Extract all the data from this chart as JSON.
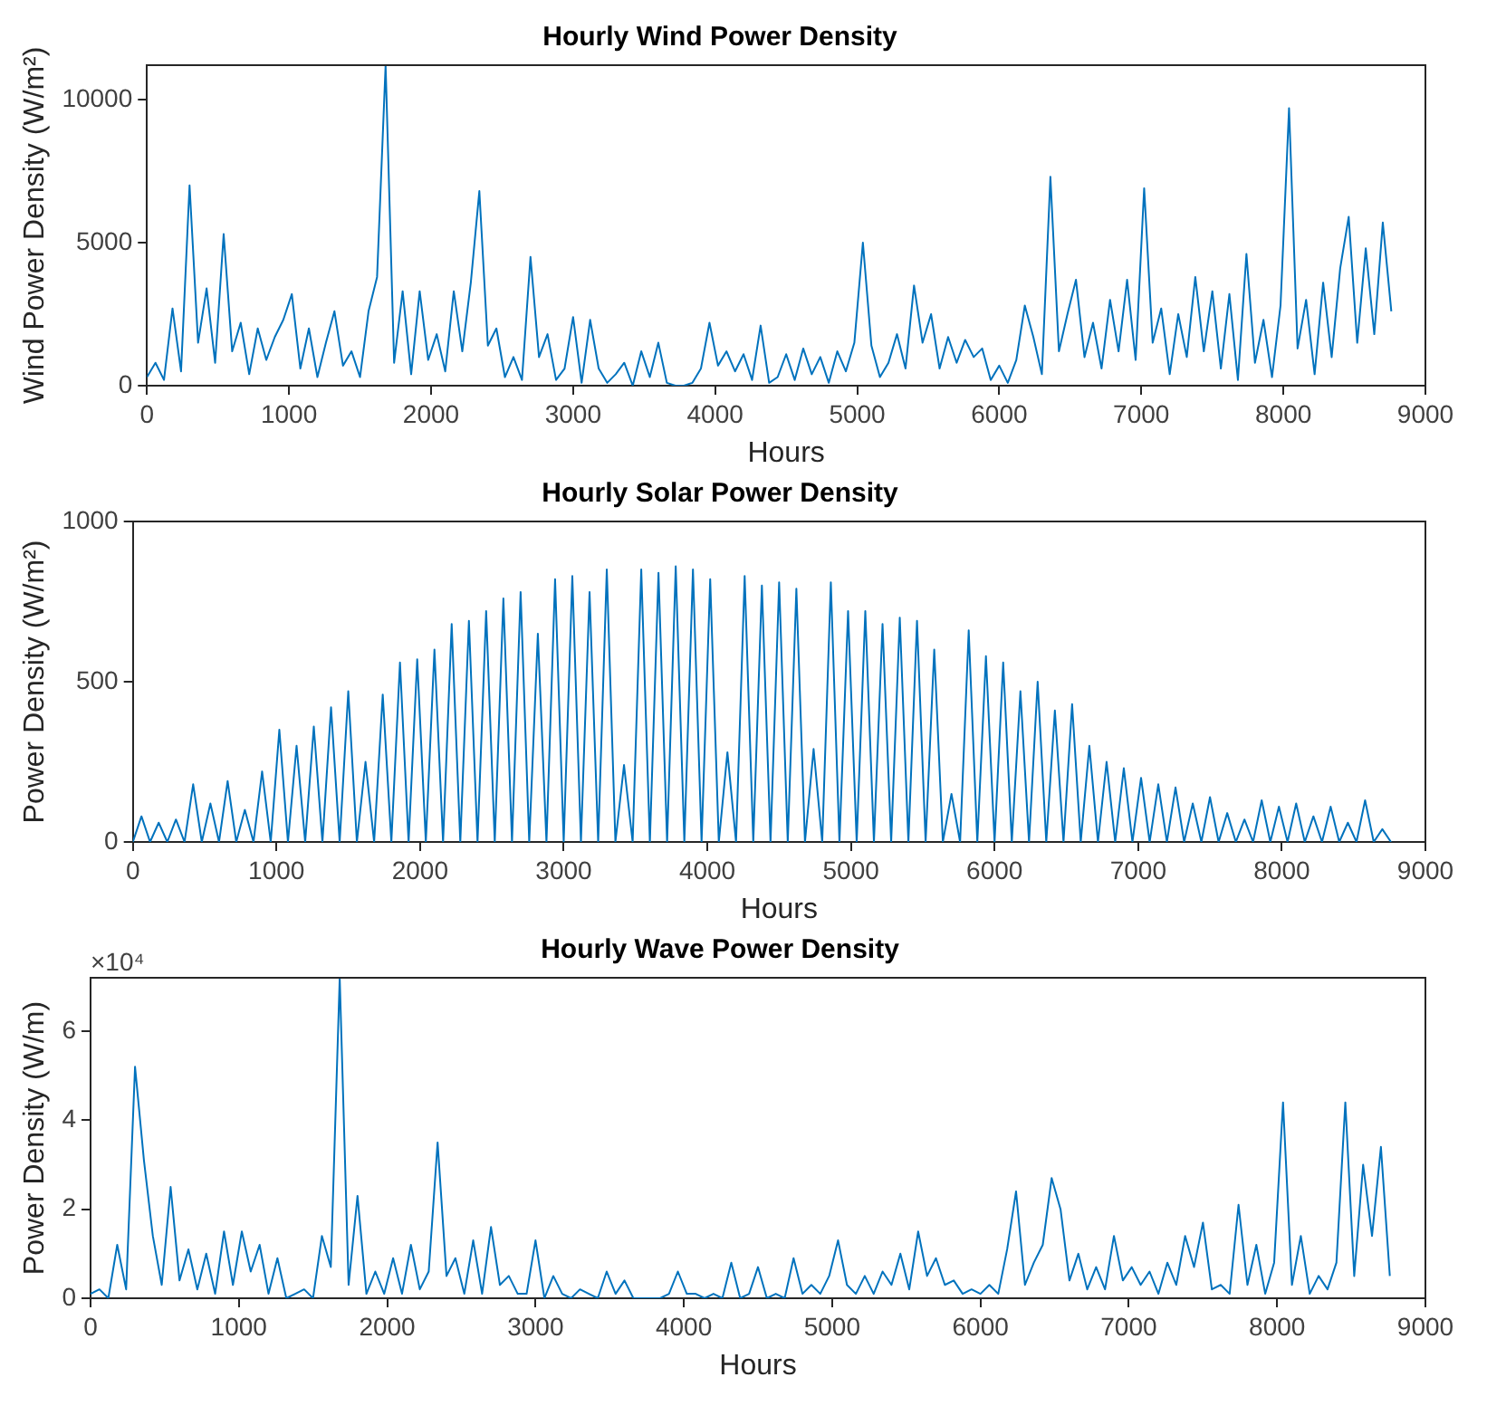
{
  "chart_data": [
    {
      "type": "line",
      "title": "Hourly Wind Power Density",
      "xlabel": "Hours",
      "ylabel": "Wind Power Density (W/m²)",
      "color": "#0072bd",
      "marker": "none",
      "xlim": [
        0,
        9000
      ],
      "xticks": [
        0,
        1000,
        2000,
        3000,
        4000,
        5000,
        6000,
        7000,
        8000,
        9000
      ],
      "ylim": [
        0,
        11200
      ],
      "yticks": [
        0,
        5000,
        10000
      ],
      "x": [
        0,
        60,
        120,
        180,
        240,
        300,
        360,
        420,
        480,
        540,
        600,
        660,
        720,
        780,
        840,
        900,
        960,
        1020,
        1080,
        1140,
        1200,
        1260,
        1320,
        1380,
        1440,
        1500,
        1560,
        1620,
        1680,
        1740,
        1800,
        1860,
        1920,
        1980,
        2040,
        2100,
        2160,
        2220,
        2280,
        2340,
        2400,
        2460,
        2520,
        2580,
        2640,
        2700,
        2760,
        2820,
        2880,
        2940,
        3000,
        3060,
        3120,
        3180,
        3240,
        3300,
        3360,
        3420,
        3480,
        3540,
        3600,
        3660,
        3720,
        3780,
        3840,
        3900,
        3960,
        4020,
        4080,
        4140,
        4200,
        4260,
        4320,
        4380,
        4440,
        4500,
        4560,
        4620,
        4680,
        4740,
        4800,
        4860,
        4920,
        4980,
        5040,
        5100,
        5160,
        5220,
        5280,
        5340,
        5400,
        5460,
        5520,
        5580,
        5640,
        5700,
        5760,
        5820,
        5880,
        5940,
        6000,
        6060,
        6120,
        6180,
        6240,
        6300,
        6360,
        6420,
        6480,
        6540,
        6600,
        6660,
        6720,
        6780,
        6840,
        6900,
        6960,
        7020,
        7080,
        7140,
        7200,
        7260,
        7320,
        7380,
        7440,
        7500,
        7560,
        7620,
        7680,
        7740,
        7800,
        7860,
        7920,
        7980,
        8040,
        8100,
        8160,
        8220,
        8280,
        8340,
        8400,
        8460,
        8520,
        8580,
        8640,
        8700,
        8760
      ],
      "values": [
        300,
        800,
        200,
        2700,
        500,
        7000,
        1500,
        3400,
        800,
        5300,
        1200,
        2200,
        400,
        2000,
        900,
        1700,
        2300,
        3200,
        600,
        2000,
        300,
        1500,
        2600,
        700,
        1200,
        300,
        2600,
        3800,
        11200,
        800,
        3300,
        400,
        3300,
        900,
        1800,
        500,
        3300,
        1200,
        3600,
        6800,
        1400,
        2000,
        300,
        1000,
        200,
        4500,
        1000,
        1800,
        200,
        600,
        2400,
        100,
        2300,
        600,
        100,
        400,
        800,
        0,
        1200,
        300,
        1500,
        100,
        0,
        0,
        100,
        600,
        2200,
        700,
        1200,
        500,
        1100,
        200,
        2100,
        100,
        300,
        1100,
        200,
        1300,
        400,
        1000,
        100,
        1200,
        500,
        1500,
        5000,
        1400,
        300,
        800,
        1800,
        600,
        3500,
        1500,
        2500,
        600,
        1700,
        800,
        1600,
        1000,
        1300,
        200,
        700,
        100,
        900,
        2800,
        1700,
        400,
        7300,
        1200,
        2500,
        3700,
        1000,
        2200,
        600,
        3000,
        1200,
        3700,
        900,
        6900,
        1500,
        2700,
        400,
        2500,
        1000,
        3800,
        1200,
        3300,
        600,
        3200,
        200,
        4600,
        800,
        2300,
        300,
        2800,
        9700,
        1300,
        3000,
        400,
        3600,
        1000,
        4100,
        5900,
        1500,
        4800,
        1800,
        5700,
        2600
      ]
    },
    {
      "type": "line",
      "title": "Hourly Solar Power Density",
      "xlabel": "Hours",
      "ylabel": "Power Density (W/m²)",
      "color": "#0072bd",
      "marker": "none",
      "xlim": [
        0,
        9000
      ],
      "xticks": [
        0,
        1000,
        2000,
        3000,
        4000,
        5000,
        6000,
        7000,
        8000,
        9000
      ],
      "ylim": [
        0,
        1000
      ],
      "yticks": [
        0,
        500,
        1000
      ],
      "x": [
        0,
        60,
        120,
        180,
        240,
        300,
        360,
        420,
        480,
        540,
        600,
        660,
        720,
        780,
        840,
        900,
        960,
        1020,
        1080,
        1140,
        1200,
        1260,
        1320,
        1380,
        1440,
        1500,
        1560,
        1620,
        1680,
        1740,
        1800,
        1860,
        1920,
        1980,
        2040,
        2100,
        2160,
        2220,
        2280,
        2340,
        2400,
        2460,
        2520,
        2580,
        2640,
        2700,
        2760,
        2820,
        2880,
        2940,
        3000,
        3060,
        3120,
        3180,
        3240,
        3300,
        3360,
        3420,
        3480,
        3540,
        3600,
        3660,
        3720,
        3780,
        3840,
        3900,
        3960,
        4020,
        4080,
        4140,
        4200,
        4260,
        4320,
        4380,
        4440,
        4500,
        4560,
        4620,
        4680,
        4740,
        4800,
        4860,
        4920,
        4980,
        5040,
        5100,
        5160,
        5220,
        5280,
        5340,
        5400,
        5460,
        5520,
        5580,
        5640,
        5700,
        5760,
        5820,
        5880,
        5940,
        6000,
        6060,
        6120,
        6180,
        6240,
        6300,
        6360,
        6420,
        6480,
        6540,
        6600,
        6660,
        6720,
        6780,
        6840,
        6900,
        6960,
        7020,
        7080,
        7140,
        7200,
        7260,
        7320,
        7380,
        7440,
        7500,
        7560,
        7620,
        7680,
        7740,
        7800,
        7860,
        7920,
        7980,
        8040,
        8100,
        8160,
        8220,
        8280,
        8340,
        8400,
        8460,
        8520,
        8580,
        8640,
        8700,
        8760
      ],
      "values": [
        0,
        80,
        0,
        60,
        0,
        70,
        0,
        180,
        0,
        120,
        0,
        190,
        0,
        100,
        0,
        220,
        0,
        350,
        0,
        300,
        0,
        360,
        0,
        420,
        0,
        470,
        0,
        250,
        0,
        460,
        0,
        560,
        0,
        570,
        0,
        600,
        0,
        680,
        0,
        690,
        0,
        720,
        0,
        760,
        0,
        780,
        0,
        650,
        0,
        820,
        0,
        830,
        0,
        780,
        0,
        850,
        0,
        240,
        0,
        850,
        0,
        840,
        0,
        860,
        0,
        850,
        0,
        820,
        0,
        280,
        0,
        830,
        0,
        800,
        0,
        810,
        0,
        790,
        0,
        290,
        0,
        810,
        0,
        720,
        0,
        720,
        0,
        680,
        0,
        700,
        0,
        690,
        0,
        600,
        0,
        150,
        0,
        660,
        0,
        580,
        0,
        560,
        0,
        470,
        0,
        500,
        0,
        410,
        0,
        430,
        0,
        300,
        0,
        250,
        0,
        230,
        0,
        200,
        0,
        180,
        0,
        170,
        0,
        120,
        0,
        140,
        0,
        90,
        0,
        70,
        0,
        130,
        0,
        110,
        0,
        120,
        0,
        80,
        0,
        110,
        0,
        60,
        0,
        130,
        0,
        40,
        0
      ]
    },
    {
      "type": "line",
      "title": "Hourly Wave Power Density",
      "xlabel": "Hours",
      "ylabel": "Power Density (W/m)",
      "color": "#0072bd",
      "marker": "none",
      "annotations": [
        "×10⁴"
      ],
      "xlim": [
        0,
        9000
      ],
      "xticks": [
        0,
        1000,
        2000,
        3000,
        4000,
        5000,
        6000,
        7000,
        8000,
        9000
      ],
      "ylim": [
        0,
        7.2
      ],
      "yticks": [
        0,
        2,
        4,
        6
      ],
      "x": [
        0,
        60,
        120,
        180,
        240,
        300,
        360,
        420,
        480,
        540,
        600,
        660,
        720,
        780,
        840,
        900,
        960,
        1020,
        1080,
        1140,
        1200,
        1260,
        1320,
        1380,
        1440,
        1500,
        1560,
        1620,
        1680,
        1740,
        1800,
        1860,
        1920,
        1980,
        2040,
        2100,
        2160,
        2220,
        2280,
        2340,
        2400,
        2460,
        2520,
        2580,
        2640,
        2700,
        2760,
        2820,
        2880,
        2940,
        3000,
        3060,
        3120,
        3180,
        3240,
        3300,
        3360,
        3420,
        3480,
        3540,
        3600,
        3660,
        3720,
        3780,
        3840,
        3900,
        3960,
        4020,
        4080,
        4140,
        4200,
        4260,
        4320,
        4380,
        4440,
        4500,
        4560,
        4620,
        4680,
        4740,
        4800,
        4860,
        4920,
        4980,
        5040,
        5100,
        5160,
        5220,
        5280,
        5340,
        5400,
        5460,
        5520,
        5580,
        5640,
        5700,
        5760,
        5820,
        5880,
        5940,
        6000,
        6060,
        6120,
        6180,
        6240,
        6300,
        6360,
        6420,
        6480,
        6540,
        6600,
        6660,
        6720,
        6780,
        6840,
        6900,
        6960,
        7020,
        7080,
        7140,
        7200,
        7260,
        7320,
        7380,
        7440,
        7500,
        7560,
        7620,
        7680,
        7740,
        7800,
        7860,
        7920,
        7980,
        8040,
        8100,
        8160,
        8220,
        8280,
        8340,
        8400,
        8460,
        8520,
        8580,
        8640,
        8700,
        8760
      ],
      "values": [
        0.1,
        0.2,
        0,
        1.2,
        0.2,
        5.2,
        3.1,
        1.4,
        0.3,
        2.5,
        0.4,
        1.1,
        0.2,
        1.0,
        0.1,
        1.5,
        0.3,
        1.5,
        0.6,
        1.2,
        0.1,
        0.9,
        0,
        0.1,
        0.2,
        0,
        1.4,
        0.7,
        7.2,
        0.3,
        2.3,
        0.1,
        0.6,
        0.1,
        0.9,
        0.1,
        1.2,
        0.2,
        0.6,
        3.5,
        0.5,
        0.9,
        0.1,
        1.3,
        0.1,
        1.6,
        0.3,
        0.5,
        0.1,
        0.1,
        1.3,
        0,
        0.5,
        0.1,
        0,
        0.2,
        0.1,
        0,
        0.6,
        0.1,
        0.4,
        0,
        0,
        0,
        0,
        0.1,
        0.6,
        0.1,
        0.1,
        0,
        0.1,
        0,
        0.8,
        0,
        0.1,
        0.7,
        0,
        0.1,
        0,
        0.9,
        0.1,
        0.3,
        0.1,
        0.5,
        1.3,
        0.3,
        0.1,
        0.5,
        0.1,
        0.6,
        0.3,
        1.0,
        0.2,
        1.5,
        0.5,
        0.9,
        0.3,
        0.4,
        0.1,
        0.2,
        0.1,
        0.3,
        0.1,
        1.1,
        2.4,
        0.3,
        0.8,
        1.2,
        2.7,
        2.0,
        0.4,
        1.0,
        0.2,
        0.7,
        0.2,
        1.4,
        0.4,
        0.7,
        0.3,
        0.6,
        0.1,
        0.8,
        0.3,
        1.4,
        0.7,
        1.7,
        0.2,
        0.3,
        0.1,
        2.1,
        0.3,
        1.2,
        0.1,
        0.8,
        4.4,
        0.3,
        1.4,
        0.1,
        0.5,
        0.2,
        0.8,
        4.4,
        0.5,
        3.0,
        1.4,
        3.4,
        0.5
      ]
    }
  ]
}
